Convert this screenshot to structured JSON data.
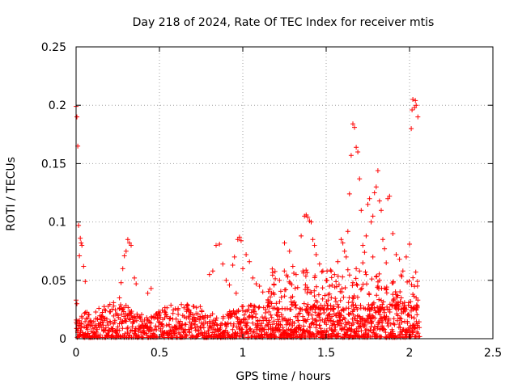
{
  "chart_data": {
    "type": "scatter",
    "title": "Day 218 of 2024, Rate Of TEC Index for receiver mtis",
    "xlabel": "GPS time / hours",
    "ylabel": "ROTI / TECUs",
    "xlim": [
      0,
      2.5
    ],
    "ylim": [
      0,
      0.25
    ],
    "xticks": [
      0,
      0.5,
      1,
      1.5,
      2,
      2.5
    ],
    "xtick_labels": [
      "0",
      "0.5",
      "1",
      "1.5",
      "2",
      "2.5"
    ],
    "yticks": [
      0,
      0.05,
      0.1,
      0.15,
      0.2,
      0.25
    ],
    "ytick_labels": [
      "0",
      "0.05",
      "0.1",
      "0.15",
      "0.2",
      "0.25"
    ],
    "grid": true,
    "marker": "+",
    "color": "#ff0000",
    "series": [
      {
        "name": "ROTI",
        "points": [
          [
            0.0,
            0.199
          ],
          [
            0.005,
            0.19
          ],
          [
            0.01,
            0.165
          ],
          [
            0.015,
            0.097
          ],
          [
            0.02,
            0.071
          ],
          [
            0.025,
            0.086
          ],
          [
            0.03,
            0.082
          ],
          [
            0.035,
            0.08
          ],
          [
            0.045,
            0.062
          ],
          [
            0.055,
            0.049
          ],
          [
            0.0,
            0.033
          ],
          [
            0.005,
            0.03
          ],
          [
            0.28,
            0.06
          ],
          [
            0.29,
            0.071
          ],
          [
            0.3,
            0.075
          ],
          [
            0.31,
            0.085
          ],
          [
            0.32,
            0.082
          ],
          [
            0.33,
            0.08
          ],
          [
            0.27,
            0.048
          ],
          [
            0.35,
            0.052
          ],
          [
            0.36,
            0.047
          ],
          [
            0.43,
            0.039
          ],
          [
            0.45,
            0.043
          ],
          [
            0.26,
            0.035
          ],
          [
            0.8,
            0.055
          ],
          [
            0.82,
            0.058
          ],
          [
            0.84,
            0.08
          ],
          [
            0.86,
            0.081
          ],
          [
            0.88,
            0.064
          ],
          [
            0.9,
            0.05
          ],
          [
            0.92,
            0.046
          ],
          [
            0.94,
            0.063
          ],
          [
            0.95,
            0.07
          ],
          [
            0.97,
            0.085
          ],
          [
            0.98,
            0.087
          ],
          [
            0.99,
            0.084
          ],
          [
            1.0,
            0.06
          ],
          [
            1.02,
            0.072
          ],
          [
            1.04,
            0.066
          ],
          [
            1.06,
            0.052
          ],
          [
            1.08,
            0.047
          ],
          [
            1.1,
            0.045
          ],
          [
            1.12,
            0.04
          ],
          [
            0.96,
            0.039
          ],
          [
            1.22,
            0.05
          ],
          [
            1.25,
            0.082
          ],
          [
            1.28,
            0.075
          ],
          [
            1.3,
            0.062
          ],
          [
            1.32,
            0.055
          ],
          [
            1.35,
            0.088
          ],
          [
            1.37,
            0.105
          ],
          [
            1.38,
            0.106
          ],
          [
            1.39,
            0.104
          ],
          [
            1.4,
            0.101
          ],
          [
            1.41,
            0.1
          ],
          [
            1.42,
            0.085
          ],
          [
            1.43,
            0.08
          ],
          [
            1.44,
            0.072
          ],
          [
            1.46,
            0.064
          ],
          [
            1.48,
            0.058
          ],
          [
            1.5,
            0.05
          ],
          [
            1.52,
            0.045
          ],
          [
            1.55,
            0.055
          ],
          [
            1.57,
            0.066
          ],
          [
            1.59,
            0.085
          ],
          [
            1.6,
            0.082
          ],
          [
            1.61,
            0.075
          ],
          [
            1.62,
            0.07
          ],
          [
            1.63,
            0.092
          ],
          [
            1.64,
            0.124
          ],
          [
            1.65,
            0.157
          ],
          [
            1.66,
            0.184
          ],
          [
            1.67,
            0.181
          ],
          [
            1.68,
            0.164
          ],
          [
            1.69,
            0.16
          ],
          [
            1.7,
            0.137
          ],
          [
            1.71,
            0.11
          ],
          [
            1.72,
            0.08
          ],
          [
            1.73,
            0.074
          ],
          [
            1.74,
            0.088
          ],
          [
            1.75,
            0.115
          ],
          [
            1.76,
            0.12
          ],
          [
            1.77,
            0.1
          ],
          [
            1.78,
            0.105
          ],
          [
            1.79,
            0.125
          ],
          [
            1.8,
            0.13
          ],
          [
            1.81,
            0.144
          ],
          [
            1.82,
            0.118
          ],
          [
            1.83,
            0.11
          ],
          [
            1.84,
            0.085
          ],
          [
            1.85,
            0.077
          ],
          [
            1.86,
            0.065
          ],
          [
            1.87,
            0.12
          ],
          [
            1.88,
            0.122
          ],
          [
            1.9,
            0.09
          ],
          [
            1.92,
            0.072
          ],
          [
            1.94,
            0.068
          ],
          [
            1.96,
            0.058
          ],
          [
            1.98,
            0.07
          ],
          [
            2.0,
            0.081
          ],
          [
            2.01,
            0.18
          ],
          [
            2.015,
            0.196
          ],
          [
            2.02,
            0.205
          ],
          [
            2.03,
            0.198
          ],
          [
            2.035,
            0.204
          ],
          [
            2.04,
            0.2
          ],
          [
            2.05,
            0.19
          ],
          [
            1.66,
            0.048
          ],
          [
            1.68,
            0.06
          ],
          [
            1.7,
            0.058
          ],
          [
            1.72,
            0.065
          ],
          [
            1.74,
            0.055
          ],
          [
            1.78,
            0.07
          ],
          [
            1.8,
            0.053
          ],
          [
            1.82,
            0.05
          ],
          [
            1.86,
            0.042
          ],
          [
            1.9,
            0.038
          ],
          [
            1.95,
            0.035
          ],
          [
            1.97,
            0.031
          ],
          [
            2.02,
            0.038
          ],
          [
            2.04,
            0.035
          ],
          [
            2.05,
            0.033
          ]
        ],
        "baseline_band": {
          "x_range": [
            0.0,
            2.06
          ],
          "y_range": [
            0.001,
            0.03
          ],
          "note": "dense cluster of markers along the bottom of the plot"
        }
      }
    ]
  }
}
